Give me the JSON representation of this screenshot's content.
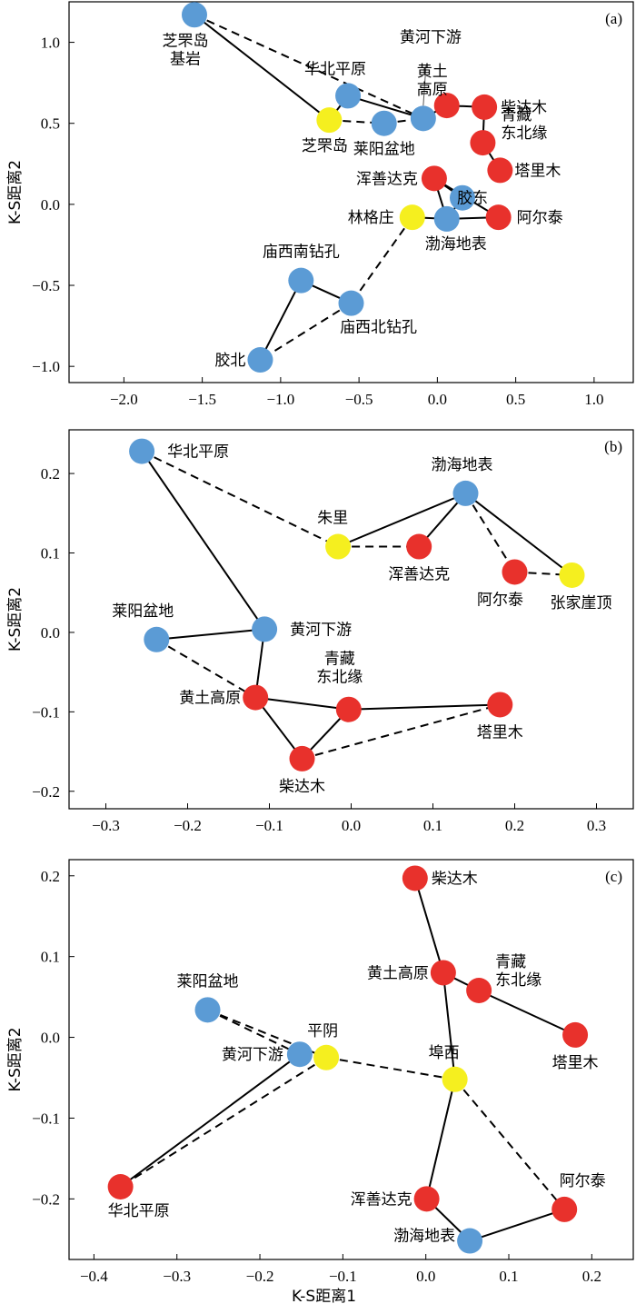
{
  "colors": {
    "blue": "#5b9bd5",
    "red": "#e8312c",
    "yellow": "#f5ef1f"
  },
  "chart_data": [
    {
      "type": "scatter",
      "panel_label": "(a)",
      "xlabel": "",
      "ylabel": "K-S距离2",
      "xlim": [
        -2.35,
        1.25
      ],
      "ylim": [
        -1.1,
        1.25
      ],
      "xticks": [
        "-2.0",
        "-1.5",
        "-1.0",
        "-0.5",
        "0.0",
        "0.5",
        "1.0"
      ],
      "yticks": [
        "-1.0",
        "-0.5",
        "0.0",
        "0.5",
        "1.0"
      ],
      "points": [
        {
          "id": "zfd_rock",
          "label": [
            "芝罘岛",
            "基岩"
          ],
          "x": -1.55,
          "y": 1.17,
          "color": "blue"
        },
        {
          "id": "hbpy",
          "label": [
            "华北平原"
          ],
          "x": -0.57,
          "y": 0.67,
          "color": "blue"
        },
        {
          "id": "zfd",
          "label": [
            "芝罘岛"
          ],
          "x": -0.69,
          "y": 0.52,
          "color": "yellow"
        },
        {
          "id": "lypd",
          "label": [
            "莱阳盆地"
          ],
          "x": -0.34,
          "y": 0.5,
          "color": "blue"
        },
        {
          "id": "hhxy",
          "label": [
            "黄河下游"
          ],
          "x": -0.09,
          "y": 0.53,
          "color": "blue"
        },
        {
          "id": "htgy",
          "label": [
            "黄土",
            "高原"
          ],
          "x": 0.06,
          "y": 0.61,
          "color": "red"
        },
        {
          "id": "cdm",
          "label": [
            "柴达木"
          ],
          "x": 0.3,
          "y": 0.6,
          "color": "red"
        },
        {
          "id": "qzdby",
          "label": [
            "青藏",
            "东北缘"
          ],
          "x": 0.29,
          "y": 0.38,
          "color": "red"
        },
        {
          "id": "tlm",
          "label": [
            "塔里木"
          ],
          "x": 0.4,
          "y": 0.21,
          "color": "red"
        },
        {
          "id": "hsdk",
          "label": [
            "浑善达克"
          ],
          "x": -0.02,
          "y": 0.16,
          "color": "red"
        },
        {
          "id": "jd",
          "label": [
            "胶东"
          ],
          "x": 0.16,
          "y": 0.04,
          "color": "blue"
        },
        {
          "id": "lgz",
          "label": [
            "林格庄"
          ],
          "x": -0.16,
          "y": -0.08,
          "color": "yellow"
        },
        {
          "id": "bhdb",
          "label": [
            "渤海地表"
          ],
          "x": 0.06,
          "y": -0.09,
          "color": "blue"
        },
        {
          "id": "aet",
          "label": [
            "阿尔泰"
          ],
          "x": 0.39,
          "y": -0.08,
          "color": "red"
        },
        {
          "id": "mxn",
          "label": [
            "庙西南钻孔"
          ],
          "x": -0.87,
          "y": -0.47,
          "color": "blue"
        },
        {
          "id": "mxb",
          "label": [
            "庙西北钻孔"
          ],
          "x": -0.55,
          "y": -0.61,
          "color": "blue"
        },
        {
          "id": "jb",
          "label": [
            "胶北"
          ],
          "x": -1.13,
          "y": -0.96,
          "color": "blue"
        }
      ],
      "solid_edges": [
        [
          "zfd_rock",
          "zfd"
        ],
        [
          "zfd",
          "hbpy"
        ],
        [
          "hbpy",
          "hhxy"
        ],
        [
          "hhxy",
          "htgy"
        ],
        [
          "htgy",
          "cdm"
        ],
        [
          "cdm",
          "qzdby"
        ],
        [
          "qzdby",
          "tlm"
        ],
        [
          "hsdk",
          "bhdb"
        ],
        [
          "hsdk",
          "jd"
        ],
        [
          "hsdk",
          "aet"
        ],
        [
          "jd",
          "bhdb"
        ],
        [
          "bhdb",
          "aet"
        ],
        [
          "lgz",
          "bhdb"
        ],
        [
          "mxn",
          "jb"
        ],
        [
          "mxn",
          "mxb"
        ]
      ],
      "dashed_edges": [
        [
          "zfd_rock",
          "hhxy"
        ],
        [
          "zfd",
          "lypd"
        ],
        [
          "lypd",
          "hhxy"
        ],
        [
          "lgz",
          "mxb"
        ],
        [
          "mxb",
          "jb"
        ]
      ],
      "pointer_lines": [
        [
          "hhxy"
        ]
      ]
    },
    {
      "type": "scatter",
      "panel_label": "(b)",
      "xlabel": "",
      "ylabel": "K-S距离2",
      "xlim": [
        -0.345,
        0.345
      ],
      "ylim": [
        -0.222,
        0.255
      ],
      "xticks": [
        "-0.3",
        "-0.2",
        "-0.1",
        "0.0",
        "0.1",
        "0.2",
        "0.3"
      ],
      "yticks": [
        "-0.2",
        "-0.1",
        "0.0",
        "0.1",
        "0.2"
      ],
      "points": [
        {
          "id": "hbpy",
          "label": [
            "华北平原"
          ],
          "x": -0.256,
          "y": 0.228,
          "color": "blue"
        },
        {
          "id": "zl",
          "label": [
            "朱里"
          ],
          "x": -0.016,
          "y": 0.108,
          "color": "yellow"
        },
        {
          "id": "hsdk",
          "label": [
            "浑善达克"
          ],
          "x": 0.083,
          "y": 0.108,
          "color": "red"
        },
        {
          "id": "bhdb",
          "label": [
            "渤海地表"
          ],
          "x": 0.14,
          "y": 0.175,
          "color": "blue"
        },
        {
          "id": "aet",
          "label": [
            "阿尔泰"
          ],
          "x": 0.2,
          "y": 0.076,
          "color": "red"
        },
        {
          "id": "zjyd",
          "label": [
            "张家崖顶"
          ],
          "x": 0.27,
          "y": 0.072,
          "color": "yellow"
        },
        {
          "id": "lypd",
          "label": [
            "莱阳盆地"
          ],
          "x": -0.238,
          "y": -0.009,
          "color": "blue"
        },
        {
          "id": "hhxy",
          "label": [
            "黄河下游"
          ],
          "x": -0.106,
          "y": 0.004,
          "color": "blue"
        },
        {
          "id": "htgy",
          "label": [
            "黄土高原"
          ],
          "x": -0.117,
          "y": -0.082,
          "color": "red"
        },
        {
          "id": "qzdby",
          "label": [
            "青藏",
            "东北缘"
          ],
          "x": -0.003,
          "y": -0.097,
          "color": "red"
        },
        {
          "id": "tlm",
          "label": [
            "塔里木"
          ],
          "x": 0.182,
          "y": -0.091,
          "color": "red"
        },
        {
          "id": "cdm",
          "label": [
            "柴达木"
          ],
          "x": -0.06,
          "y": -0.159,
          "color": "red"
        }
      ],
      "solid_edges": [
        [
          "hbpy",
          "hhxy"
        ],
        [
          "zl",
          "bhdb"
        ],
        [
          "bhdb",
          "hsdk"
        ],
        [
          "bhdb",
          "zjyd"
        ],
        [
          "lypd",
          "hhxy"
        ],
        [
          "hhxy",
          "htgy"
        ],
        [
          "htgy",
          "qzdby"
        ],
        [
          "htgy",
          "cdm"
        ],
        [
          "qzdby",
          "cdm"
        ],
        [
          "qzdby",
          "tlm"
        ]
      ],
      "dashed_edges": [
        [
          "hbpy",
          "zl"
        ],
        [
          "zl",
          "hsdk"
        ],
        [
          "bhdb",
          "aet"
        ],
        [
          "aet",
          "zjyd"
        ],
        [
          "lypd",
          "htgy"
        ],
        [
          "cdm",
          "tlm"
        ]
      ],
      "pointer_lines": []
    },
    {
      "type": "scatter",
      "panel_label": "(c)",
      "xlabel": "K-S距离1",
      "ylabel": "K-S距离2",
      "xlim": [
        -0.43,
        0.25
      ],
      "ylim": [
        -0.275,
        0.22
      ],
      "xticks": [
        "-0.4",
        "-0.3",
        "-0.2",
        "-0.1",
        "0.0",
        "0.1",
        "0.2"
      ],
      "yticks": [
        "-0.2",
        "-0.1",
        "0.0",
        "0.1",
        "0.2"
      ],
      "points": [
        {
          "id": "cdm",
          "label": [
            "柴达木"
          ],
          "x": -0.013,
          "y": 0.197,
          "color": "red"
        },
        {
          "id": "htgy",
          "label": [
            "黄土高原"
          ],
          "x": 0.021,
          "y": 0.08,
          "color": "red"
        },
        {
          "id": "qzdby",
          "label": [
            "青藏",
            "东北缘"
          ],
          "x": 0.064,
          "y": 0.058,
          "color": "red"
        },
        {
          "id": "tlm",
          "label": [
            "塔里木"
          ],
          "x": 0.18,
          "y": 0.003,
          "color": "red"
        },
        {
          "id": "lypd",
          "label": [
            "莱阳盆地"
          ],
          "x": -0.263,
          "y": 0.034,
          "color": "blue"
        },
        {
          "id": "py",
          "label": [
            "平阴"
          ],
          "x": -0.12,
          "y": -0.025,
          "color": "yellow"
        },
        {
          "id": "hhxy",
          "label": [
            "黄河下游"
          ],
          "x": -0.152,
          "y": -0.021,
          "color": "blue"
        },
        {
          "id": "fx",
          "label": [
            "埠西"
          ],
          "x": 0.035,
          "y": -0.052,
          "color": "yellow"
        },
        {
          "id": "hbpy",
          "label": [
            "华北平原"
          ],
          "x": -0.368,
          "y": -0.185,
          "color": "red"
        },
        {
          "id": "hsdk",
          "label": [
            "浑善达克"
          ],
          "x": 0.001,
          "y": -0.2,
          "color": "red"
        },
        {
          "id": "aet",
          "label": [
            "阿尔泰"
          ],
          "x": 0.167,
          "y": -0.213,
          "color": "red"
        },
        {
          "id": "bhdb",
          "label": [
            "渤海地表"
          ],
          "x": 0.053,
          "y": -0.252,
          "color": "blue"
        }
      ],
      "solid_edges": [
        [
          "cdm",
          "htgy"
        ],
        [
          "htgy",
          "qzdby"
        ],
        [
          "qzdby",
          "tlm"
        ],
        [
          "htgy",
          "fx"
        ],
        [
          "hhxy",
          "hbpy"
        ],
        [
          "fx",
          "hsdk"
        ],
        [
          "hsdk",
          "bhdb"
        ],
        [
          "bhdb",
          "aet"
        ]
      ],
      "dashed_edges": [
        [
          "lypd",
          "hhxy"
        ],
        [
          "lypd",
          "py"
        ],
        [
          "py",
          "fx"
        ],
        [
          "py",
          "hbpy"
        ],
        [
          "fx",
          "aet"
        ]
      ],
      "pointer_lines": []
    }
  ]
}
